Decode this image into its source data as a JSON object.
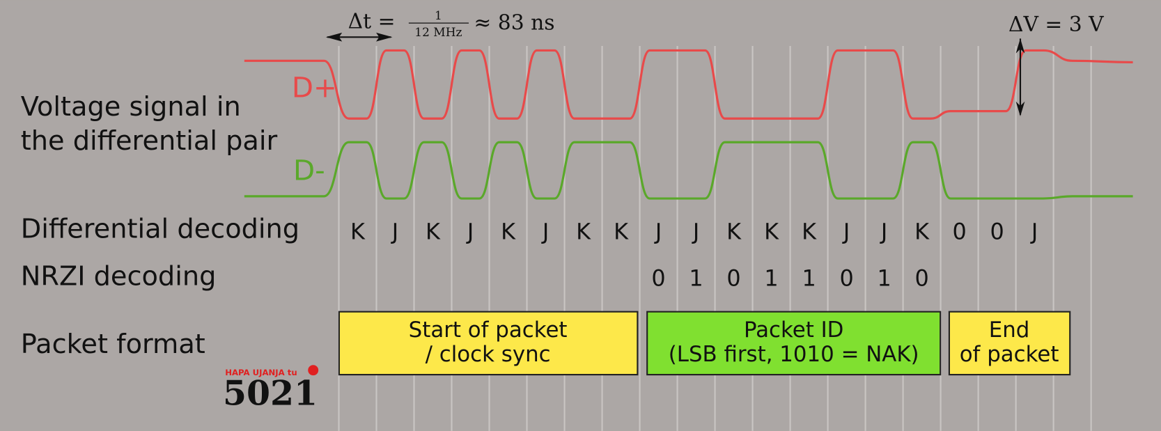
{
  "annotations": {
    "delta_t_lhs": "Δt =",
    "fraction_numerator": "1",
    "fraction_denominator": "12 MHz",
    "delta_t_rhs": "≈ 83 ns",
    "delta_v": "ΔV = 3 V"
  },
  "row_labels": [
    "Voltage signal in",
    "the differential pair",
    "Differential decoding",
    "NRZI decoding",
    "Packet format"
  ],
  "signals": {
    "d_plus": "D+",
    "d_minus": "D-"
  },
  "differential_decoding": [
    "K",
    "J",
    "K",
    "J",
    "K",
    "J",
    "K",
    "K",
    "J",
    "J",
    "K",
    "K",
    "K",
    "J",
    "J",
    "K",
    "0",
    "0",
    "J"
  ],
  "nrzi_decoding": [
    "0",
    "1",
    "0",
    "1",
    "1",
    "0",
    "1",
    "0"
  ],
  "packets": [
    {
      "line1": "Start of packet",
      "line2": "/ clock sync"
    },
    {
      "line1": "Packet ID",
      "line2": "(LSB first, 1010 = NAK)"
    },
    {
      "line1": "End",
      "line2": "of packet"
    }
  ],
  "watermark": {
    "caption": "HAPA UJANJA tu",
    "number": "5021"
  }
}
